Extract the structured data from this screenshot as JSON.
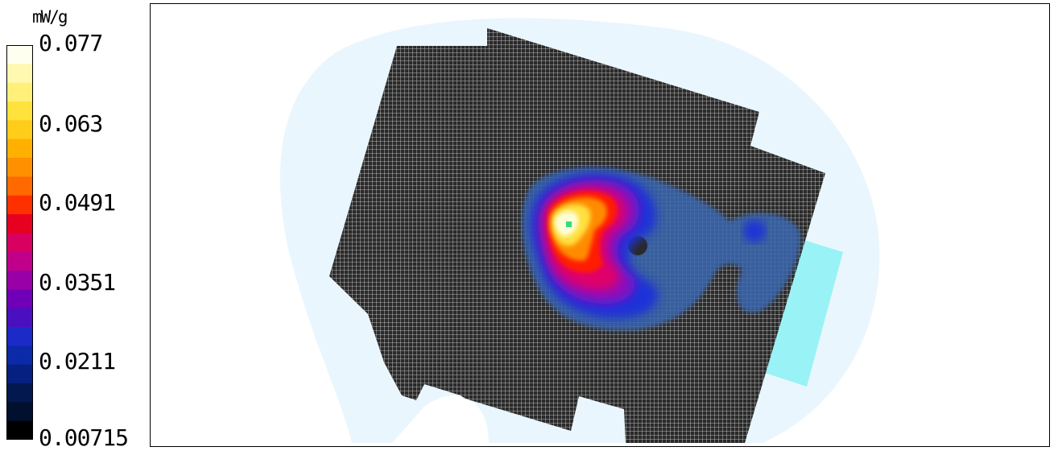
{
  "legend": {
    "unit": "mW/g",
    "ticks": [
      "0.077",
      "0.063",
      "0.0491",
      "0.0351",
      "0.0211",
      "0.00715"
    ],
    "colors": [
      "#fffff0",
      "#fff8b0",
      "#fff07a",
      "#ffe23c",
      "#ffcc1a",
      "#ffb000",
      "#ff9000",
      "#ff6a00",
      "#ff3000",
      "#e80020",
      "#d80060",
      "#c0008a",
      "#9a00a8",
      "#7000b8",
      "#4a10c0",
      "#1c2ac8",
      "#0a2aa8",
      "#052080",
      "#041850",
      "#021030",
      "#000000"
    ]
  },
  "plot": {
    "colors": {
      "halo": "#eaf6fd",
      "phantom": "#2a2a2a",
      "grid": "#dadada",
      "tab": "#99f2f6",
      "low": "#3a68b0",
      "mid_blue": "#1c30d8",
      "purple": "#8a10c0",
      "magenta": "#e0006a",
      "red": "#ff1c00",
      "orange": "#ff8c00",
      "yellow": "#ffe040",
      "peak": "#ffffd8",
      "marker": "#33dd77"
    }
  }
}
